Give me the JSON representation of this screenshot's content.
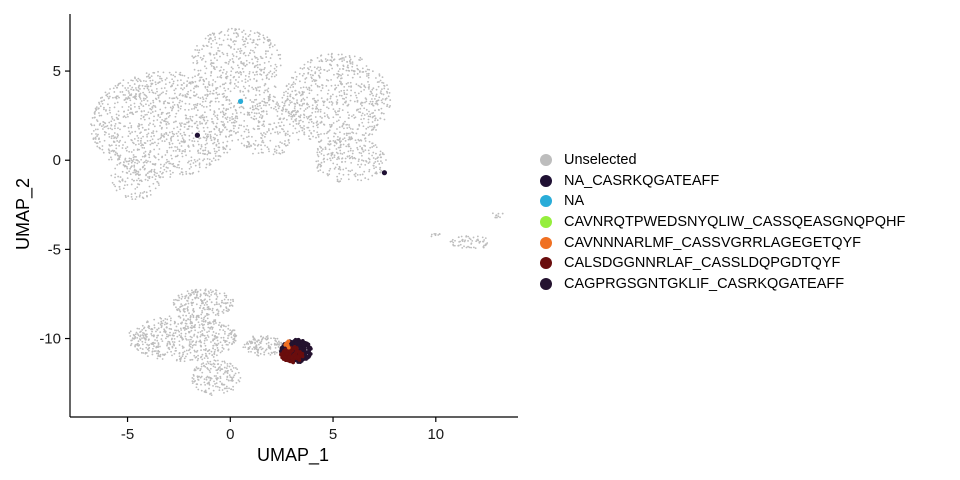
{
  "chart_data": {
    "type": "scatter",
    "xlabel": "UMAP_1",
    "ylabel": "UMAP_2",
    "xlim": [
      -7.8,
      14.0
    ],
    "ylim": [
      -14.4,
      8.2
    ],
    "x_ticks": [
      -5,
      0,
      5,
      10
    ],
    "y_ticks": [
      5,
      0,
      -5,
      -10
    ],
    "x_tick_labels": [
      "-5",
      "0",
      "5",
      "10"
    ],
    "y_tick_labels": [
      "5",
      "0",
      "-5",
      "-10"
    ],
    "grid": false,
    "legend_position": "right",
    "legend": [
      {
        "label": "Unselected",
        "color": "#bdbdbd"
      },
      {
        "label": "NA_CASRKQGATEAFF",
        "color": "#1f1033"
      },
      {
        "label": "NA",
        "color": "#29acd8"
      },
      {
        "label": "CAVNRQTPWEDSNYQLIW_CASSQEASGNQPQHF",
        "color": "#95ee3c"
      },
      {
        "label": "CAVNNNARLMF_CASSVGRRLAGEGETQYF",
        "color": "#f07022"
      },
      {
        "label": "CALSDGGNNRLAF_CASSLDQPGDTQYF",
        "color": "#6a0d0d"
      },
      {
        "label": "CAGPRGSGNTGKLIF_CASRKQGATEAFF",
        "color": "#24122f"
      }
    ],
    "series": [
      {
        "name": "Unselected",
        "color": "#bdbdbd",
        "regions": [
          {
            "cx": -3.2,
            "cy": 2.0,
            "rx": 3.6,
            "ry": 3.0,
            "n": 1100
          },
          {
            "cx": 0.3,
            "cy": 5.6,
            "rx": 2.2,
            "ry": 1.8,
            "n": 350
          },
          {
            "cx": 1.8,
            "cy": 2.2,
            "rx": 1.8,
            "ry": 2.0,
            "n": 300
          },
          {
            "cx": 5.2,
            "cy": 3.4,
            "rx": 2.6,
            "ry": 2.6,
            "n": 650
          },
          {
            "cx": 5.8,
            "cy": 0.0,
            "rx": 1.8,
            "ry": 1.3,
            "n": 220
          },
          {
            "cx": -4.6,
            "cy": -1.0,
            "rx": 1.2,
            "ry": 1.2,
            "n": 120
          },
          {
            "cx": 11.7,
            "cy": -4.6,
            "rx": 1.0,
            "ry": 0.4,
            "n": 60
          },
          {
            "cx": 13.0,
            "cy": -3.0,
            "rx": 0.3,
            "ry": 0.25,
            "n": 10
          },
          {
            "cx": 10.0,
            "cy": -4.2,
            "rx": 0.3,
            "ry": 0.12,
            "n": 8
          },
          {
            "cx": -2.3,
            "cy": -10.0,
            "rx": 2.7,
            "ry": 1.3,
            "n": 550
          },
          {
            "cx": -1.3,
            "cy": -8.0,
            "rx": 1.5,
            "ry": 0.8,
            "n": 200
          },
          {
            "cx": -0.7,
            "cy": -12.2,
            "rx": 1.2,
            "ry": 1.0,
            "n": 180
          },
          {
            "cx": 1.6,
            "cy": -10.4,
            "rx": 1.0,
            "ry": 0.6,
            "n": 120
          }
        ]
      },
      {
        "name": "CAGPRGSGNTGKLIF_CASRKQGATEAFF",
        "color": "#24122f",
        "regions": [
          {
            "cx": 3.2,
            "cy": -10.7,
            "rx": 0.75,
            "ry": 0.65,
            "n": 320
          }
        ]
      },
      {
        "name": "CALSDGGNNRLAF_CASSLDQPGDTQYF",
        "color": "#6a0d0d",
        "regions": [
          {
            "cx": 3.0,
            "cy": -10.9,
            "rx": 0.55,
            "ry": 0.45,
            "n": 90
          }
        ]
      },
      {
        "name": "CAVNNNARLMF_CASSVGRRLAGEGETQYF",
        "color": "#f07022",
        "regions": [
          {
            "cx": 2.75,
            "cy": -10.3,
            "rx": 0.15,
            "ry": 0.3,
            "n": 8
          }
        ]
      },
      {
        "name": "NA",
        "color": "#29acd8",
        "points": [
          [
            0.5,
            3.3
          ]
        ]
      },
      {
        "name": "NA_CASRKQGATEAFF",
        "color": "#1f1033",
        "points": [
          [
            -1.6,
            1.4
          ],
          [
            7.5,
            -0.7
          ]
        ]
      }
    ]
  }
}
